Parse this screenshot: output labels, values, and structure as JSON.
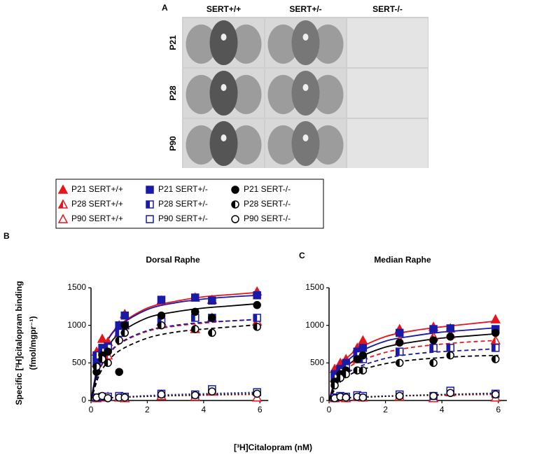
{
  "figure_a": {
    "panel": "A",
    "columns": [
      "SERT+/+",
      "SERT+/-",
      "SERT-/-"
    ],
    "rows": [
      "P21",
      "P28",
      "P90"
    ]
  },
  "legend": [
    "P21 SERT+/+",
    "P21 SERT+/-",
    "P21 SERT-/-",
    "P28 SERT+/+",
    "P28 SERT+/-",
    "P28 SERT-/-",
    "P90 SERT+/+",
    "P90 SERT+/-",
    "P90 SERT-/-"
  ],
  "chart_data": [
    {
      "type": "scatter",
      "panel": "B",
      "title": "Dorsal Raphe",
      "y_label": [
        "Specific [³H]citalopram binding",
        "(fmol/mgpr⁻¹)"
      ],
      "x_label": "[³H]Citalopram (nM)",
      "xlim": [
        0,
        6.3
      ],
      "xticks": [
        0,
        2,
        4,
        6
      ],
      "ylim": [
        0,
        1500
      ],
      "yticks": [
        0,
        500,
        1000,
        1500
      ],
      "x": [
        0.2,
        0.4,
        0.6,
        1.0,
        1.2,
        2.5,
        3.7,
        4.3,
        5.9
      ],
      "fit_x": [
        0,
        0.25,
        0.5,
        1,
        2,
        3,
        4,
        5,
        6
      ],
      "series": [
        {
          "color": "#e8141b",
          "marker": "triangle",
          "fill": "full",
          "dash": "solid",
          "values": [
            650,
            820,
            780,
            1000,
            1150,
            1330,
            1370,
            1340,
            1450
          ],
          "fit": [
            0,
            500,
            750,
            1000,
            1230,
            1320,
            1380,
            1410,
            1440
          ]
        },
        {
          "color": "#e8141b",
          "marker": "triangle",
          "fill": "half",
          "dash": "dashed",
          "values": [
            500,
            560,
            600,
            900,
            1000,
            1050,
            950,
            1100,
            1050
          ],
          "fit": [
            0,
            350,
            540,
            750,
            920,
            990,
            1030,
            1060,
            1080
          ]
        },
        {
          "color": "#e8141b",
          "marker": "triangle",
          "fill": "open",
          "dash": "dotted",
          "values": [
            30,
            40,
            50,
            40,
            30,
            60,
            50,
            120,
            40
          ],
          "fit": [
            0,
            20,
            30,
            40,
            55,
            65,
            70,
            75,
            80
          ]
        },
        {
          "color": "#1a1aa8",
          "marker": "square",
          "fill": "full",
          "dash": "solid",
          "values": [
            520,
            700,
            720,
            1000,
            1130,
            1340,
            1370,
            1330,
            1400
          ],
          "fit": [
            0,
            490,
            740,
            990,
            1210,
            1300,
            1350,
            1380,
            1400
          ]
        },
        {
          "color": "#1a1aa8",
          "marker": "square",
          "fill": "half",
          "dash": "dashed",
          "values": [
            600,
            650,
            700,
            900,
            1000,
            1050,
            1100,
            1100,
            1100
          ],
          "fit": [
            0,
            360,
            550,
            760,
            930,
            1000,
            1040,
            1060,
            1080
          ]
        },
        {
          "color": "#1a1aa8",
          "marker": "square",
          "fill": "open",
          "dash": "dotted",
          "values": [
            40,
            50,
            50,
            60,
            50,
            90,
            80,
            150,
            110
          ],
          "fit": [
            0,
            25,
            35,
            45,
            65,
            80,
            90,
            100,
            110
          ]
        },
        {
          "color": "#000000",
          "marker": "circle",
          "fill": "full",
          "dash": "solid",
          "values": [
            380,
            600,
            650,
            380,
            1000,
            1130,
            1180,
            1100,
            1270
          ],
          "fit": [
            0,
            420,
            650,
            890,
            1100,
            1180,
            1230,
            1260,
            1290
          ]
        },
        {
          "color": "#000000",
          "marker": "circle",
          "fill": "half",
          "dash": "dashed",
          "values": [
            450,
            550,
            500,
            800,
            900,
            1000,
            950,
            900,
            980
          ],
          "fit": [
            0,
            300,
            470,
            660,
            830,
            910,
            950,
            980,
            1010
          ]
        },
        {
          "color": "#000000",
          "marker": "circle",
          "fill": "open",
          "dash": "dotted",
          "values": [
            40,
            60,
            30,
            40,
            40,
            80,
            70,
            120,
            90
          ],
          "fit": [
            0,
            20,
            30,
            40,
            55,
            65,
            75,
            85,
            90
          ]
        }
      ]
    },
    {
      "type": "scatter",
      "panel": "C",
      "title": "Median Raphe",
      "xlim": [
        0,
        6.3
      ],
      "xticks": [
        0,
        2,
        4,
        6
      ],
      "ylim": [
        0,
        1500
      ],
      "yticks": [
        0,
        500,
        1000,
        1500
      ],
      "x": [
        0.2,
        0.4,
        0.6,
        1.0,
        1.2,
        2.5,
        3.7,
        4.3,
        5.9
      ],
      "fit_x": [
        0,
        0.25,
        0.5,
        1,
        2,
        3,
        4,
        5,
        6
      ],
      "series": [
        {
          "color": "#e8141b",
          "marker": "triangle",
          "fill": "full",
          "dash": "solid",
          "values": [
            420,
            500,
            550,
            700,
            800,
            950,
            980,
            960,
            1080
          ],
          "fit": [
            0,
            330,
            500,
            680,
            850,
            930,
            980,
            1020,
            1060
          ]
        },
        {
          "color": "#e8141b",
          "marker": "triangle",
          "fill": "half",
          "dash": "dashed",
          "values": [
            300,
            400,
            450,
            550,
            600,
            800,
            850,
            880,
            800
          ],
          "fit": [
            0,
            240,
            370,
            510,
            640,
            710,
            750,
            780,
            800
          ]
        },
        {
          "color": "#e8141b",
          "marker": "triangle",
          "fill": "open",
          "dash": "dotted",
          "values": [
            30,
            40,
            30,
            50,
            40,
            50,
            30,
            110,
            40
          ],
          "fit": [
            0,
            20,
            30,
            40,
            55,
            65,
            70,
            75,
            80
          ]
        },
        {
          "color": "#1a1aa8",
          "marker": "square",
          "fill": "full",
          "dash": "solid",
          "values": [
            350,
            420,
            500,
            650,
            700,
            900,
            950,
            960,
            950
          ],
          "fit": [
            0,
            300,
            460,
            630,
            790,
            860,
            910,
            940,
            970
          ]
        },
        {
          "color": "#1a1aa8",
          "marker": "square",
          "fill": "half",
          "dash": "dashed",
          "values": [
            300,
            380,
            430,
            600,
            550,
            650,
            700,
            700,
            700
          ],
          "fit": [
            0,
            210,
            320,
            440,
            560,
            620,
            650,
            670,
            690
          ]
        },
        {
          "color": "#1a1aa8",
          "marker": "square",
          "fill": "open",
          "dash": "dotted",
          "values": [
            40,
            60,
            50,
            70,
            60,
            80,
            60,
            130,
            90
          ],
          "fit": [
            0,
            25,
            35,
            45,
            60,
            70,
            80,
            90,
            100
          ]
        },
        {
          "color": "#000000",
          "marker": "circle",
          "fill": "full",
          "dash": "solid",
          "values": [
            250,
            350,
            400,
            550,
            600,
            770,
            800,
            850,
            900
          ],
          "fit": [
            0,
            260,
            400,
            560,
            710,
            780,
            830,
            860,
            890
          ]
        },
        {
          "color": "#000000",
          "marker": "circle",
          "fill": "half",
          "dash": "dashed",
          "values": [
            200,
            300,
            350,
            400,
            400,
            500,
            500,
            600,
            550
          ],
          "fit": [
            0,
            180,
            280,
            390,
            490,
            540,
            570,
            590,
            600
          ]
        },
        {
          "color": "#000000",
          "marker": "circle",
          "fill": "open",
          "dash": "dotted",
          "values": [
            30,
            50,
            40,
            50,
            40,
            60,
            60,
            100,
            80
          ],
          "fit": [
            0,
            20,
            30,
            40,
            55,
            65,
            75,
            85,
            90
          ]
        }
      ]
    }
  ]
}
